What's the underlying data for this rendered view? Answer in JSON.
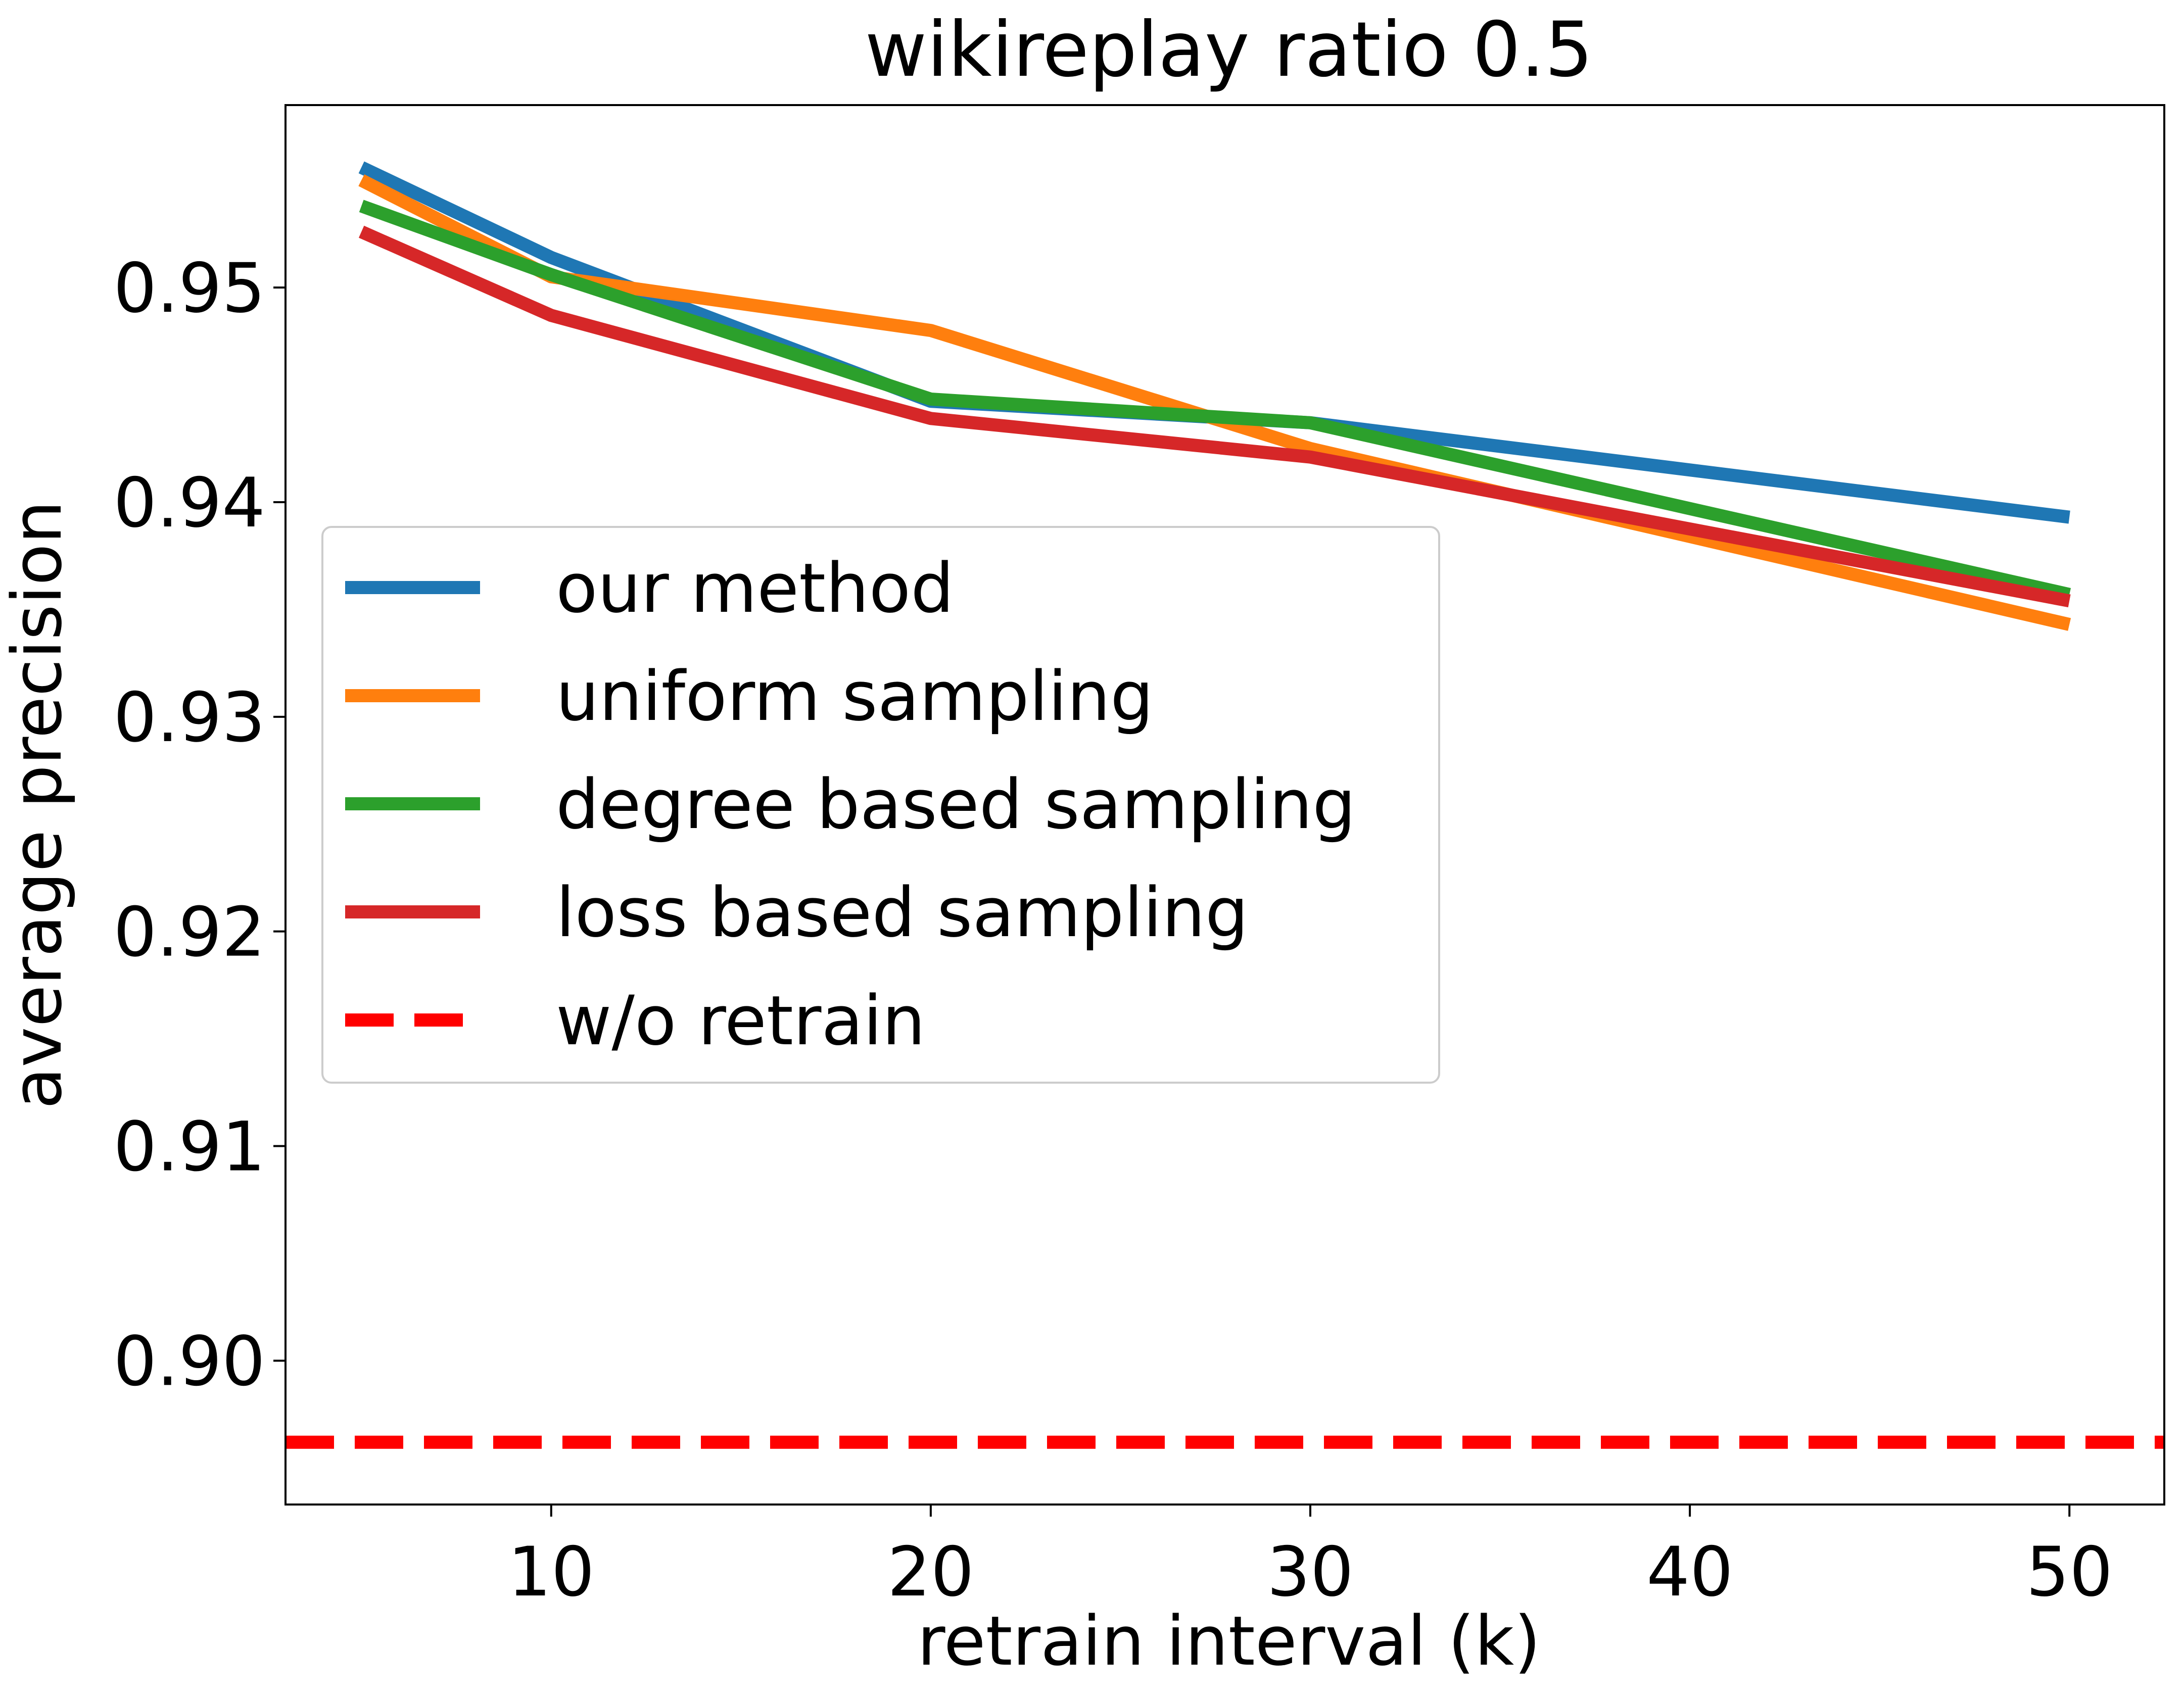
{
  "chart_data": {
    "type": "line",
    "title": "wikireplay ratio 0.5",
    "xlabel": "retrain interval (k)",
    "ylabel": "average precision",
    "xlim": [
      3,
      52.5
    ],
    "ylim": [
      0.8933,
      0.9585
    ],
    "xticks": [
      10,
      20,
      30,
      40,
      50
    ],
    "xtick_labels": [
      "10",
      "20",
      "30",
      "40",
      "50"
    ],
    "yticks": [
      0.9,
      0.91,
      0.92,
      0.93,
      0.94,
      0.95
    ],
    "ytick_labels": [
      "0.90",
      "0.91",
      "0.92",
      "0.93",
      "0.94",
      "0.95"
    ],
    "grid": false,
    "legend_position": "center-left",
    "x": [
      5,
      10,
      20,
      30,
      50
    ],
    "series": [
      {
        "name": "our method",
        "color": "#1f77b4",
        "style": "solid",
        "values": [
          0.9556,
          0.9514,
          0.9447,
          0.9437,
          0.9393
        ]
      },
      {
        "name": "uniform sampling",
        "color": "#ff7f0e",
        "style": "solid",
        "values": [
          0.955,
          0.9505,
          0.948,
          0.9425,
          0.9343
        ]
      },
      {
        "name": "degree based sampling",
        "color": "#2ca02c",
        "style": "solid",
        "values": [
          0.9538,
          0.9506,
          0.9448,
          0.9437,
          0.9357
        ]
      },
      {
        "name": "loss based sampling",
        "color": "#d62728",
        "style": "solid",
        "values": [
          0.9526,
          0.9487,
          0.9439,
          0.9421,
          0.9354
        ]
      }
    ],
    "reference_lines": [
      {
        "name": "w/o retrain",
        "color": "#ff0000",
        "style": "dashed",
        "value": 0.8962
      }
    ]
  }
}
